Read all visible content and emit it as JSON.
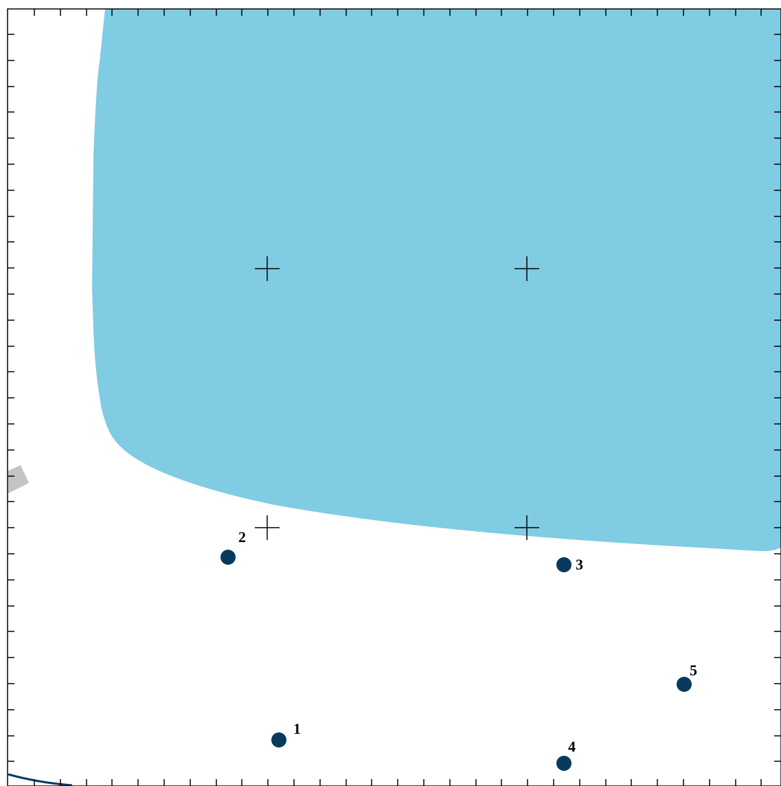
{
  "map": {
    "colors": {
      "water": "#7fcce3",
      "marker": "#073a5c",
      "road": "#c4c4c6",
      "coast_line": "#073a5c",
      "frame": "#000000",
      "background": "#ffffff"
    },
    "markers": [
      {
        "label": "1"
      },
      {
        "label": "2"
      },
      {
        "label": "3"
      },
      {
        "label": "4"
      },
      {
        "label": "5"
      }
    ]
  }
}
